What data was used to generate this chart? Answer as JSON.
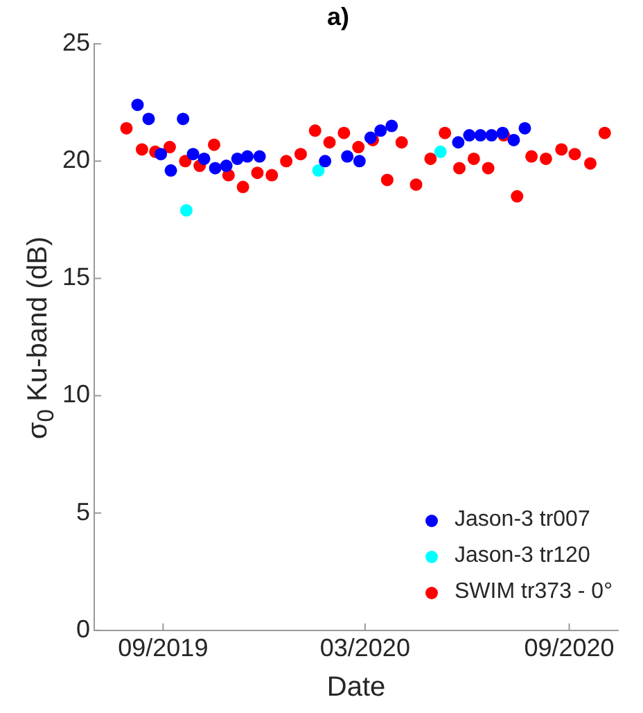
{
  "chart_data": {
    "type": "scatter",
    "title": "a)",
    "xlabel": "Date",
    "ylabel": "σ$_{0}$ Ku-band (dB)",
    "xlim": [
      "2019-07-01",
      "2020-10-15"
    ],
    "xticks": [
      {
        "value": "2019-09-01",
        "label": "09/2019"
      },
      {
        "value": "2020-03-01",
        "label": "03/2020"
      },
      {
        "value": "2020-09-01",
        "label": "09/2020"
      }
    ],
    "ylim": [
      0,
      25
    ],
    "yticks": [
      0,
      5,
      10,
      15,
      20,
      25
    ],
    "grid": false,
    "legend": "bottom right",
    "marker": "circle",
    "series": [
      {
        "name": "Jason-3 tr007",
        "color": "#0000ff",
        "x": [
          "2019-08-09",
          "2019-08-19",
          "2019-09-19",
          "2019-08-30",
          "2019-09-08",
          "2019-09-28",
          "2019-10-08",
          "2019-10-18",
          "2019-10-28",
          "2019-11-07",
          "2019-11-16",
          "2019-11-27",
          "2020-01-25",
          "2020-02-14",
          "2020-02-25",
          "2020-03-06",
          "2020-03-15",
          "2020-03-25",
          "2020-05-24",
          "2020-06-03",
          "2020-06-13",
          "2020-06-23",
          "2020-07-03",
          "2020-07-13",
          "2020-07-23"
        ],
        "values": [
          22.4,
          21.8,
          21.8,
          20.3,
          19.6,
          20.3,
          20.1,
          19.7,
          19.8,
          20.1,
          20.2,
          20.2,
          20.0,
          20.2,
          20.0,
          21.0,
          21.3,
          21.5,
          20.8,
          21.1,
          21.1,
          21.1,
          21.2,
          20.9,
          21.4
        ]
      },
      {
        "name": "Jason-3 tr120",
        "color": "#00ffff",
        "x": [
          "2019-09-22",
          "2020-01-19",
          "2020-05-08"
        ],
        "values": [
          17.9,
          19.6,
          20.4
        ]
      },
      {
        "name": "SWIM tr373 - 0°",
        "color": "#ff0000",
        "x": [
          "2019-07-30",
          "2019-08-13",
          "2019-08-25",
          "2019-09-07",
          "2019-09-21",
          "2019-10-04",
          "2019-10-17",
          "2019-10-30",
          "2019-11-12",
          "2019-11-25",
          "2019-12-08",
          "2019-12-21",
          "2020-01-03",
          "2020-01-16",
          "2020-01-29",
          "2020-02-11",
          "2020-02-24",
          "2020-03-08",
          "2020-03-21",
          "2020-04-03",
          "2020-04-16",
          "2020-04-29",
          "2020-05-12",
          "2020-05-25",
          "2020-06-07",
          "2020-06-20",
          "2020-07-04",
          "2020-07-16",
          "2020-07-29",
          "2020-08-11",
          "2020-08-25",
          "2020-09-06",
          "2020-09-20",
          "2020-10-03"
        ],
        "values": [
          21.4,
          20.5,
          20.4,
          20.6,
          20.0,
          19.8,
          20.7,
          19.4,
          18.9,
          19.5,
          19.4,
          20.0,
          20.3,
          21.3,
          20.8,
          21.2,
          20.6,
          20.9,
          19.2,
          20.8,
          19.0,
          20.1,
          21.2,
          19.7,
          20.1,
          19.7,
          21.1,
          18.5,
          20.2,
          20.1,
          20.5,
          20.3,
          19.9,
          21.2
        ]
      }
    ]
  }
}
